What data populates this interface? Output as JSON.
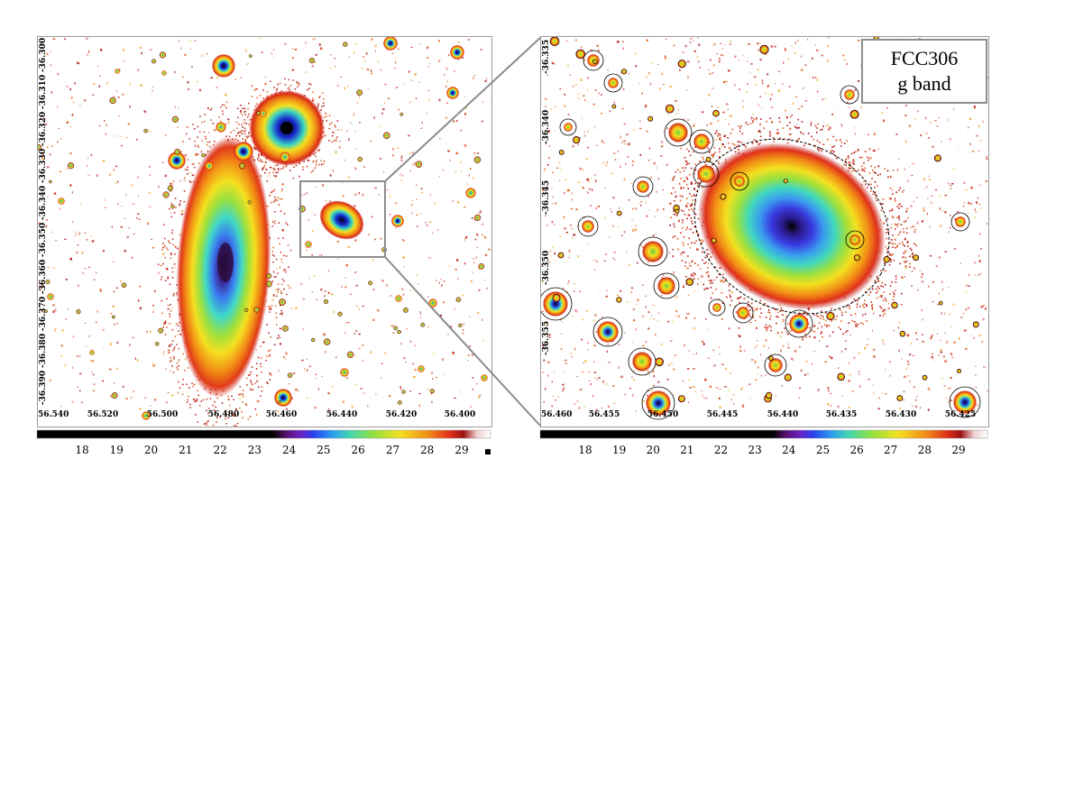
{
  "left_panel": {
    "x_ticks": [
      "56.540",
      "56.520",
      "56.500",
      "56.480",
      "56.460",
      "56.440",
      "56.420",
      "56.400"
    ],
    "y_ticks": [
      "-36.300",
      "-36.310",
      "-36.320",
      "-36.330",
      "-36.340",
      "-36.350",
      "-36.360",
      "-36.370",
      "-36.380",
      "-36.390"
    ]
  },
  "right_panel": {
    "x_ticks": [
      "56.460",
      "56.455",
      "56.450",
      "56.445",
      "56.440",
      "56.435",
      "56.430",
      "56.425"
    ],
    "y_ticks": [
      "-36.335",
      "-36.340",
      "-36.345",
      "-36.350",
      "-36.355"
    ],
    "label_line1": "FCC306",
    "label_line2": "g band"
  },
  "colorbar": {
    "ticks": [
      "18",
      "19",
      "20",
      "21",
      "22",
      "23",
      "24",
      "25",
      "26",
      "27",
      "28",
      "29"
    ],
    "colors": [
      "#000000",
      "#000000",
      "#1a0010",
      "#6b1a7a",
      "#3a2cd6",
      "#2a8cf2",
      "#3ed6a0",
      "#8ee03a",
      "#f2e21e",
      "#f59a14",
      "#e4301a",
      "#b01010",
      "#ffffff"
    ]
  }
}
